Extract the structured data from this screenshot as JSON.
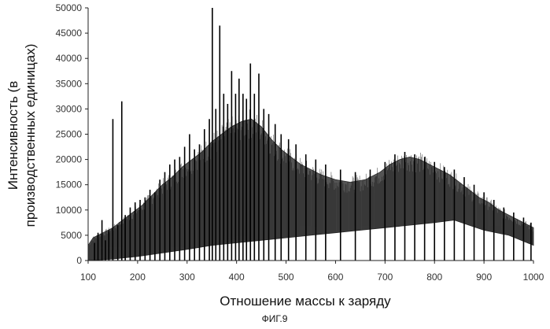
{
  "figure_caption": "ФИГ.9",
  "chart_data": {
    "type": "area",
    "title": "",
    "xlabel": "Отношение массы к заряду",
    "ylabel_lines": [
      "Интенсивность (в",
      "производственных единицах)"
    ],
    "xlim": [
      100,
      1000
    ],
    "ylim": [
      0,
      50000
    ],
    "x_ticks": [
      100,
      200,
      300,
      400,
      500,
      600,
      700,
      800,
      900,
      1000
    ],
    "y_ticks": [
      0,
      5000,
      10000,
      15000,
      20000,
      25000,
      30000,
      35000,
      40000,
      45000,
      50000
    ],
    "grid": false,
    "legend": "none",
    "fill_color": "#555555",
    "series": [
      {
        "upper_envelope": [
          [
            100,
            3000
          ],
          [
            110,
            4500
          ],
          [
            130,
            5500
          ],
          [
            150,
            6500
          ],
          [
            170,
            8000
          ],
          [
            190,
            9500
          ],
          [
            210,
            11000
          ],
          [
            230,
            13000
          ],
          [
            250,
            15000
          ],
          [
            270,
            16500
          ],
          [
            290,
            18500
          ],
          [
            310,
            20000
          ],
          [
            330,
            21500
          ],
          [
            350,
            23500
          ],
          [
            370,
            25000
          ],
          [
            390,
            26500
          ],
          [
            410,
            27500
          ],
          [
            430,
            28000
          ],
          [
            450,
            26500
          ],
          [
            470,
            24000
          ],
          [
            490,
            22000
          ],
          [
            510,
            20500
          ],
          [
            530,
            19000
          ],
          [
            550,
            18000
          ],
          [
            570,
            17000
          ],
          [
            600,
            16000
          ],
          [
            630,
            15500
          ],
          [
            660,
            16000
          ],
          [
            690,
            17500
          ],
          [
            710,
            19000
          ],
          [
            730,
            20000
          ],
          [
            750,
            20500
          ],
          [
            770,
            20000
          ],
          [
            790,
            19000
          ],
          [
            810,
            18000
          ],
          [
            830,
            17000
          ],
          [
            850,
            15500
          ],
          [
            870,
            14000
          ],
          [
            890,
            12500
          ],
          [
            910,
            11500
          ],
          [
            930,
            10000
          ],
          [
            950,
            9000
          ],
          [
            970,
            8000
          ],
          [
            990,
            7000
          ],
          [
            1000,
            6500
          ]
        ],
        "lower_envelope": [
          [
            100,
            0
          ],
          [
            150,
            300
          ],
          [
            200,
            800
          ],
          [
            250,
            1500
          ],
          [
            300,
            2200
          ],
          [
            350,
            3000
          ],
          [
            400,
            3500
          ],
          [
            450,
            4000
          ],
          [
            500,
            4500
          ],
          [
            550,
            5000
          ],
          [
            600,
            5500
          ],
          [
            650,
            6000
          ],
          [
            700,
            6500
          ],
          [
            750,
            7000
          ],
          [
            800,
            7500
          ],
          [
            840,
            8000
          ],
          [
            870,
            7000
          ],
          [
            900,
            6000
          ],
          [
            950,
            5000
          ],
          [
            1000,
            3000
          ]
        ]
      }
    ],
    "peaks": [
      [
        113,
        3500
      ],
      [
        120,
        5500
      ],
      [
        128,
        8000
      ],
      [
        135,
        4000
      ],
      [
        142,
        6000
      ],
      [
        150,
        28000
      ],
      [
        160,
        7000
      ],
      [
        168,
        31500
      ],
      [
        175,
        9000
      ],
      [
        185,
        10500
      ],
      [
        195,
        11500
      ],
      [
        205,
        12000
      ],
      [
        215,
        12500
      ],
      [
        225,
        14000
      ],
      [
        235,
        13500
      ],
      [
        245,
        16000
      ],
      [
        255,
        17500
      ],
      [
        265,
        19000
      ],
      [
        275,
        20000
      ],
      [
        285,
        20500
      ],
      [
        295,
        22500
      ],
      [
        305,
        25000
      ],
      [
        315,
        22000
      ],
      [
        325,
        23000
      ],
      [
        335,
        26000
      ],
      [
        345,
        28000
      ],
      [
        351,
        50000
      ],
      [
        358,
        30000
      ],
      [
        366,
        46500
      ],
      [
        374,
        33000
      ],
      [
        382,
        31000
      ],
      [
        390,
        37500
      ],
      [
        398,
        33000
      ],
      [
        405,
        36000
      ],
      [
        413,
        33000
      ],
      [
        420,
        32000
      ],
      [
        428,
        39000
      ],
      [
        436,
        33000
      ],
      [
        445,
        37000
      ],
      [
        455,
        30000
      ],
      [
        465,
        29000
      ],
      [
        478,
        27000
      ],
      [
        490,
        25000
      ],
      [
        505,
        24000
      ],
      [
        520,
        23000
      ],
      [
        540,
        21000
      ],
      [
        560,
        20000
      ],
      [
        580,
        19000
      ],
      [
        610,
        18000
      ],
      [
        640,
        17500
      ],
      [
        670,
        18000
      ],
      [
        700,
        19500
      ],
      [
        720,
        21000
      ],
      [
        740,
        21500
      ],
      [
        760,
        21000
      ],
      [
        780,
        20500
      ],
      [
        800,
        19500
      ],
      [
        820,
        18500
      ],
      [
        840,
        18000
      ],
      [
        860,
        16500
      ],
      [
        880,
        15000
      ],
      [
        900,
        13500
      ],
      [
        920,
        12000
      ],
      [
        940,
        10500
      ],
      [
        960,
        9500
      ],
      [
        980,
        8500
      ],
      [
        995,
        7500
      ]
    ]
  }
}
